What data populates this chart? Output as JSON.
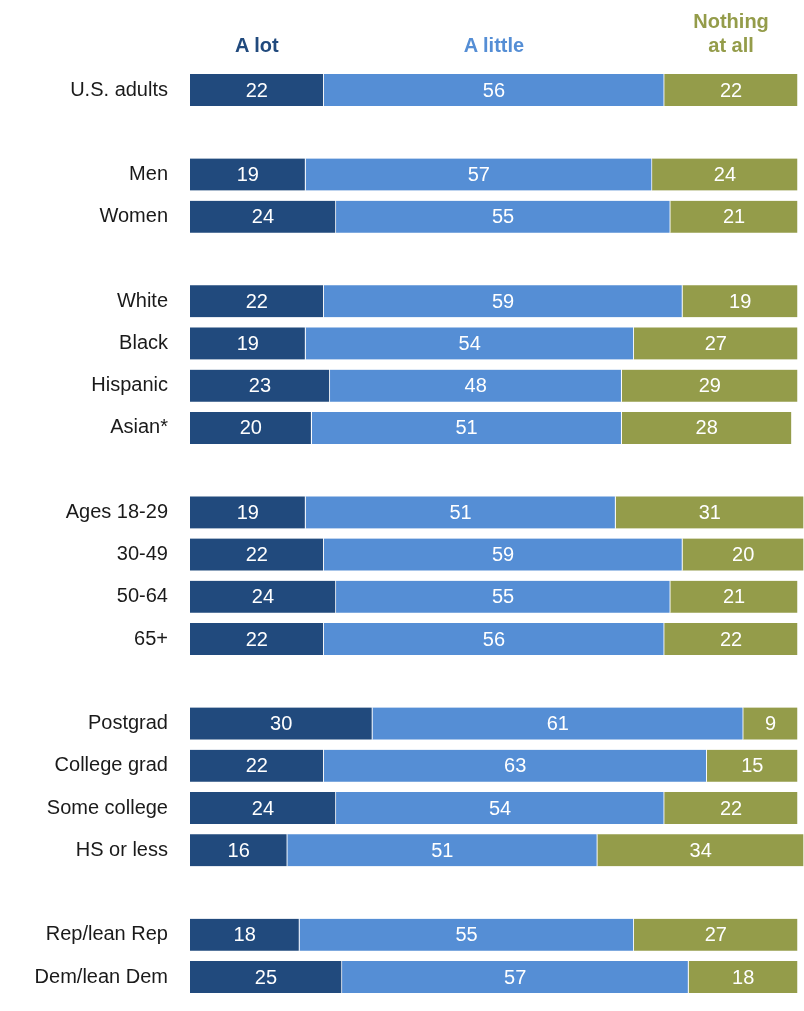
{
  "chart_data": {
    "type": "bar",
    "orientation": "horizontal",
    "stacked": true,
    "legend": "top",
    "data_labels": true,
    "tick_labels": "y",
    "xlim": [
      0,
      101
    ],
    "categories": [
      "U.S. adults",
      null,
      "Men",
      "Women",
      null,
      "White",
      "Black",
      "Hispanic",
      "Asian*",
      null,
      "Ages 18-29",
      "30-49",
      "50-64",
      "65+",
      null,
      "Postgrad",
      "College grad",
      "Some college",
      "HS or less",
      null,
      "Rep/lean Rep",
      "Dem/lean Dem"
    ],
    "series": [
      {
        "name": "A lot",
        "color": "#214a7d",
        "values": [
          22,
          null,
          19,
          24,
          null,
          22,
          19,
          23,
          20,
          null,
          19,
          22,
          24,
          22,
          null,
          30,
          22,
          24,
          16,
          null,
          18,
          25
        ]
      },
      {
        "name": "A little",
        "color": "#558ed5",
        "values": [
          56,
          null,
          57,
          55,
          null,
          59,
          54,
          48,
          51,
          null,
          51,
          59,
          55,
          56,
          null,
          61,
          63,
          54,
          51,
          null,
          55,
          57
        ]
      },
      {
        "name": "Nothing at all",
        "color": "#949c4a",
        "values": [
          22,
          null,
          24,
          21,
          null,
          19,
          27,
          29,
          28,
          null,
          31,
          20,
          21,
          22,
          null,
          9,
          15,
          22,
          34,
          null,
          27,
          18
        ]
      }
    ]
  }
}
